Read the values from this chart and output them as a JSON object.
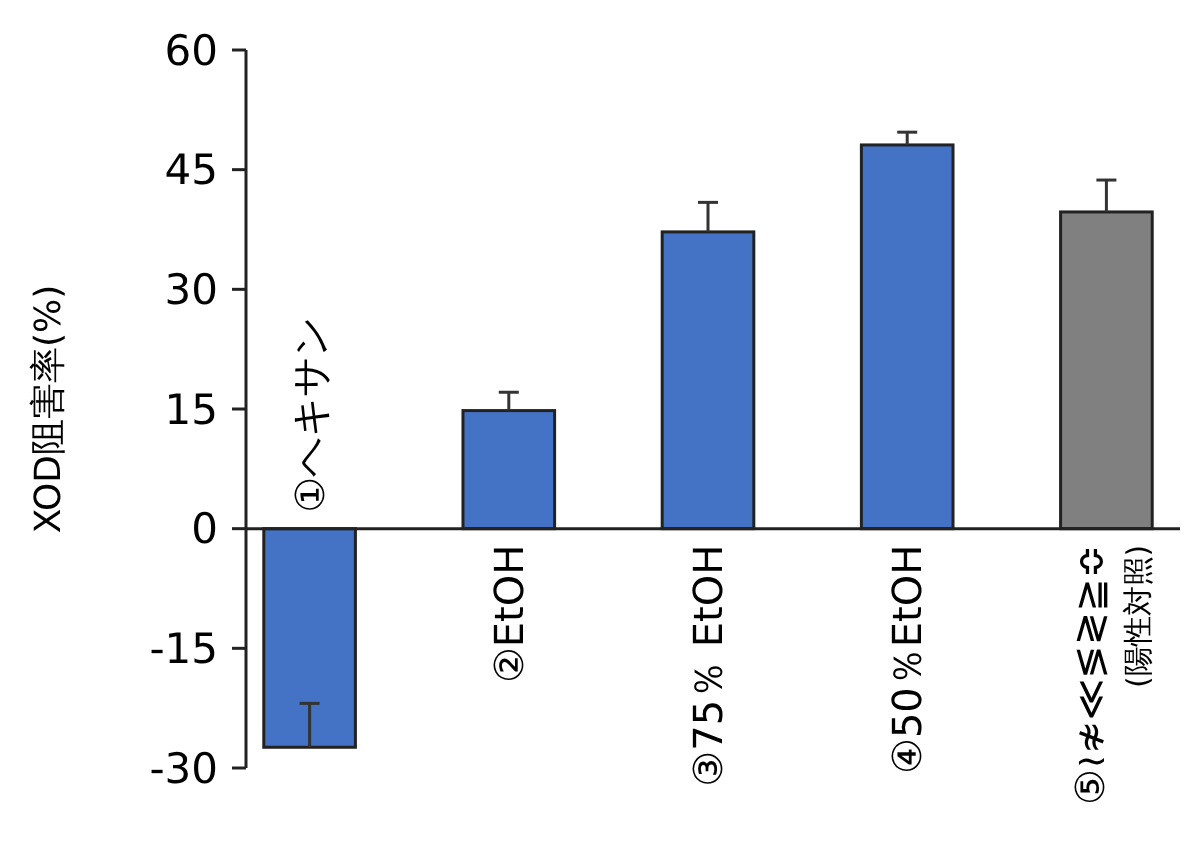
{
  "chart_data": {
    "type": "bar",
    "ylabel": "XOD阻害率(%)",
    "categories": [
      "①ヘキサン",
      "②EtOH",
      "③75％ EtOH",
      "④50％EtOH",
      "⑤≀≉≪≶≷≧≎\n(陽性対照)"
    ],
    "values": [
      -27.4,
      14.8,
      37.2,
      48.1,
      39.7
    ],
    "colors": [
      "#4472c4",
      "#4472c4",
      "#4472c4",
      "#4472c4",
      "#808080"
    ],
    "errors": [
      [
        -27.4,
        -21.9
      ],
      [
        14.8,
        17.1
      ],
      [
        37.2,
        40.9
      ],
      [
        48.1,
        49.7
      ],
      [
        39.7,
        43.7
      ]
    ],
    "ylim": [
      -30,
      60
    ],
    "yticks": [
      -30,
      -15,
      0,
      15,
      30,
      45,
      60
    ],
    "grid": false
  }
}
